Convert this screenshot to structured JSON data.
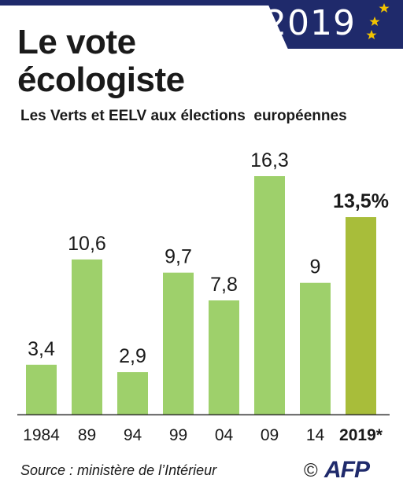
{
  "header": {
    "year_badge": "2019",
    "title_line1": "Le vote",
    "title_line2": "écologiste",
    "subtitle": "Les Verts et EELV aux élections  européennes"
  },
  "colors": {
    "bar": "#9ed06b",
    "bar_highlight": "#a8bd3a",
    "banner": "#1f2a6b",
    "stars": "#f2c300"
  },
  "chart_data": {
    "type": "bar",
    "title": "Le vote écologiste",
    "subtitle": "Les Verts et EELV aux élections  européennes",
    "categories": [
      "1984",
      "89",
      "94",
      "99",
      "04",
      "09",
      "14",
      "2019*"
    ],
    "values": [
      3.4,
      10.6,
      2.9,
      9.7,
      7.8,
      16.3,
      9,
      13.5
    ],
    "value_labels": [
      "3,4",
      "10,6",
      "2,9",
      "9,7",
      "7,8",
      "16,3",
      "9",
      "13,5%"
    ],
    "highlight_index": 7,
    "xlabel": "",
    "ylabel": "",
    "ylim": [
      0,
      16.3
    ],
    "grid": false,
    "legend": "none"
  },
  "footer": {
    "source": "Source : ministère de l’Intérieur",
    "copyright": "©",
    "agency": "AFP"
  }
}
